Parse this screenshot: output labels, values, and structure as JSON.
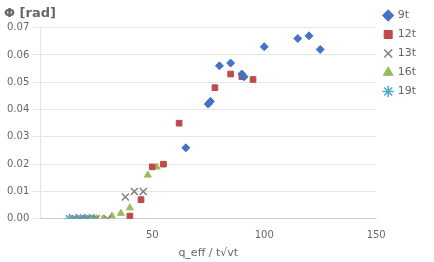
{
  "chart_data": {
    "type": "scatter",
    "title": "Φ [rad]",
    "x_label": "q_eff / t√vt",
    "series": [
      {
        "name": "9t",
        "color": "#4472C4",
        "marker": "diamond",
        "x": [
          65,
          75,
          76,
          80,
          85,
          90,
          91,
          100,
          115,
          120,
          125
        ],
        "values": [
          0.026,
          0.042,
          0.043,
          0.056,
          0.057,
          0.053,
          0.052,
          0.063,
          0.066,
          0.067,
          0.062
        ]
      },
      {
        "name": "12t",
        "color": "#BE4B48",
        "marker": "square",
        "x": [
          40,
          45,
          50,
          55,
          62,
          78,
          85,
          90,
          95
        ],
        "values": [
          0.001,
          0.007,
          0.019,
          0.02,
          0.035,
          0.048,
          0.053,
          0.052,
          0.051
        ]
      },
      {
        "name": "13t",
        "color": "#808080",
        "marker": "x",
        "x": [
          15,
          18,
          21,
          25,
          30,
          38,
          42,
          46
        ],
        "values": [
          0.0,
          0.0,
          0.0,
          0.0,
          0.0,
          0.008,
          0.01,
          0.01
        ]
      },
      {
        "name": "16t",
        "color": "#9BBB59",
        "marker": "triangle",
        "x": [
          22,
          25,
          28,
          32,
          36,
          40,
          48,
          52
        ],
        "values": [
          0.0,
          0.0,
          0.0,
          0.001,
          0.002,
          0.004,
          0.016,
          0.019
        ]
      },
      {
        "name": "19t",
        "color": "#4BACC6",
        "marker": "star",
        "x": [
          13,
          16,
          18,
          20,
          22,
          24
        ],
        "values": [
          0.0,
          0.0,
          0.0,
          0.0,
          0.0,
          0.0
        ]
      }
    ],
    "xlim": [
      0,
      150
    ],
    "xticks": [
      50,
      100,
      150
    ],
    "ylim": [
      0.0,
      0.07
    ],
    "yticks": [
      {
        "value": 0.0,
        "label": "0.00"
      },
      0.01,
      0.02,
      0.03,
      0.04,
      0.05,
      0.06,
      0.07
    ],
    "grid": "y",
    "legend": "right"
  }
}
